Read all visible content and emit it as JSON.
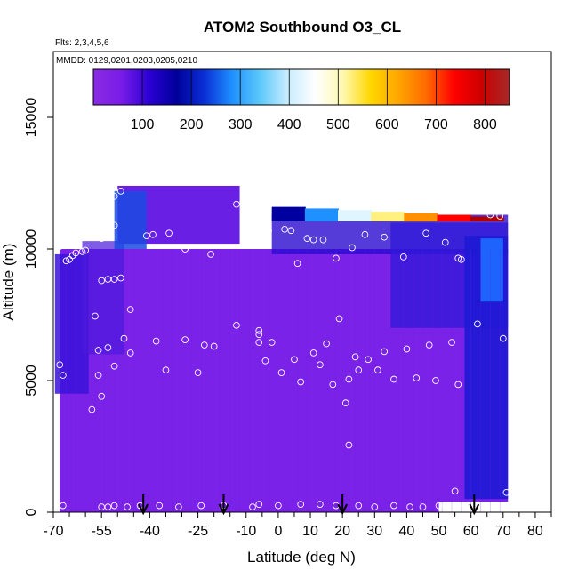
{
  "chart_data": {
    "type": "heatmap",
    "title": "ATOM2 Southbound O3_CL",
    "subtitle_flights": "Flts: 2,3,4,5,6",
    "subtitle_dates": "MMDD: 0129,0201,0203,0205,0210",
    "xlabel": "Latitude (deg N)",
    "ylabel": "Altitude (m)",
    "xlim": [
      -70,
      85
    ],
    "ylim": [
      0,
      17500
    ],
    "x_ticks": [
      "-70",
      "-55",
      "-40",
      "-25",
      "-10",
      "0",
      "10",
      "20",
      "30",
      "40",
      "50",
      "60",
      "70",
      "80"
    ],
    "x_tick_values": [
      -70,
      -55,
      -40,
      -25,
      -10,
      0,
      10,
      20,
      30,
      40,
      50,
      60,
      70,
      80
    ],
    "x_minor_ticks": [
      -65,
      -60,
      -50,
      -45,
      -35,
      -30,
      -20,
      -15,
      -5,
      5,
      15,
      25,
      35,
      45,
      55,
      65,
      75,
      85
    ],
    "y_ticks": [
      "0",
      "5000",
      "10000",
      "15000"
    ],
    "y_tick_values": [
      0,
      5000,
      10000,
      15000
    ],
    "colorbar": {
      "min": 0,
      "max": 850,
      "tick_labels": [
        "100",
        "200",
        "300",
        "400",
        "500",
        "600",
        "700",
        "800"
      ],
      "tick_values": [
        100,
        200,
        300,
        400,
        500,
        600,
        700,
        800
      ],
      "stops": [
        "#8a2be2",
        "#7a1ce8",
        "#2b00d4",
        "#00009a",
        "#0a2fd6",
        "#1e90ff",
        "#5cc8fa",
        "#c8ecff",
        "#ffffff",
        "#fff9b0",
        "#ffd700",
        "#ffa500",
        "#ff6a00",
        "#ff0000",
        "#cc0000",
        "#a52a2a"
      ]
    },
    "field_color_base": "#7b22e8",
    "field_color_dark": "#2a0bd0",
    "field_color_blue": "#1e6bff",
    "top_band_colors": [
      "#0000a0",
      "#1e90ff",
      "#e0f6ff",
      "#fff080",
      "#ff9000",
      "#ff0000",
      "#b00000"
    ],
    "arrows_lat": [
      -42,
      -17,
      20,
      61
    ],
    "observations": [
      {
        "lat": -68,
        "alt": 10100
      },
      {
        "lat": -66,
        "alt": 9550
      },
      {
        "lat": -65,
        "alt": 9600
      },
      {
        "lat": -64,
        "alt": 9750
      },
      {
        "lat": -63,
        "alt": 9850
      },
      {
        "lat": -61,
        "alt": 9900
      },
      {
        "lat": -60,
        "alt": 9950
      },
      {
        "lat": -56,
        "alt": 10600
      },
      {
        "lat": -55,
        "alt": 10400
      },
      {
        "lat": -53,
        "alt": 11800
      },
      {
        "lat": -51,
        "alt": 12000
      },
      {
        "lat": -49,
        "alt": 12200
      },
      {
        "lat": -51,
        "alt": 10900
      },
      {
        "lat": -41,
        "alt": 10500
      },
      {
        "lat": -39,
        "alt": 10550
      },
      {
        "lat": -34,
        "alt": 10600
      },
      {
        "lat": -29,
        "alt": 10000
      },
      {
        "lat": -21,
        "alt": 9800
      },
      {
        "lat": -13,
        "alt": 11700
      },
      {
        "lat": -11,
        "alt": 11800
      },
      {
        "lat": -9,
        "alt": 12000
      },
      {
        "lat": -8,
        "alt": 12000
      },
      {
        "lat": -7,
        "alt": 11900
      },
      {
        "lat": -3,
        "alt": 10700
      },
      {
        "lat": 2,
        "alt": 10750
      },
      {
        "lat": 4,
        "alt": 10700
      },
      {
        "lat": 6,
        "alt": 9450
      },
      {
        "lat": 9,
        "alt": 10400
      },
      {
        "lat": 11,
        "alt": 10350
      },
      {
        "lat": 14,
        "alt": 10350
      },
      {
        "lat": 18,
        "alt": 9650
      },
      {
        "lat": 23,
        "alt": 10050
      },
      {
        "lat": 27,
        "alt": 10550
      },
      {
        "lat": 33,
        "alt": 10450
      },
      {
        "lat": 39,
        "alt": 9700
      },
      {
        "lat": 46,
        "alt": 10600
      },
      {
        "lat": 52,
        "alt": 10250
      },
      {
        "lat": 56,
        "alt": 9650
      },
      {
        "lat": 57,
        "alt": 9600
      },
      {
        "lat": 66,
        "alt": 11300
      },
      {
        "lat": 69,
        "alt": 11250
      },
      {
        "lat": -55,
        "alt": 8800
      },
      {
        "lat": -53,
        "alt": 8850
      },
      {
        "lat": -51,
        "alt": 8850
      },
      {
        "lat": -49,
        "alt": 8900
      },
      {
        "lat": -46,
        "alt": 7700
      },
      {
        "lat": -57,
        "alt": 7450
      },
      {
        "lat": -68,
        "alt": 5600
      },
      {
        "lat": -67,
        "alt": 5200
      },
      {
        "lat": -56,
        "alt": 6150
      },
      {
        "lat": -53,
        "alt": 6250
      },
      {
        "lat": -48,
        "alt": 6600
      },
      {
        "lat": -46,
        "alt": 6050
      },
      {
        "lat": -51,
        "alt": 5550
      },
      {
        "lat": -56,
        "alt": 5200
      },
      {
        "lat": -55,
        "alt": 4400
      },
      {
        "lat": -58,
        "alt": 3900
      },
      {
        "lat": -38,
        "alt": 6500
      },
      {
        "lat": -35,
        "alt": 5400
      },
      {
        "lat": -29,
        "alt": 6550
      },
      {
        "lat": -23,
        "alt": 6350
      },
      {
        "lat": -20,
        "alt": 6300
      },
      {
        "lat": -25,
        "alt": 5300
      },
      {
        "lat": -13,
        "alt": 7100
      },
      {
        "lat": -6,
        "alt": 6900
      },
      {
        "lat": -6,
        "alt": 6750
      },
      {
        "lat": -6,
        "alt": 6450
      },
      {
        "lat": -4,
        "alt": 5750
      },
      {
        "lat": -2,
        "alt": 6450
      },
      {
        "lat": 1,
        "alt": 5300
      },
      {
        "lat": 5,
        "alt": 5800
      },
      {
        "lat": 7,
        "alt": 4950
      },
      {
        "lat": 11,
        "alt": 6050
      },
      {
        "lat": 13,
        "alt": 5600
      },
      {
        "lat": 15,
        "alt": 6400
      },
      {
        "lat": 17,
        "alt": 4850
      },
      {
        "lat": 19,
        "alt": 7350
      },
      {
        "lat": 21,
        "alt": 4150
      },
      {
        "lat": 22,
        "alt": 5050
      },
      {
        "lat": 24,
        "alt": 5900
      },
      {
        "lat": 25,
        "alt": 5400
      },
      {
        "lat": 28,
        "alt": 5800
      },
      {
        "lat": 31,
        "alt": 5400
      },
      {
        "lat": 33,
        "alt": 6100
      },
      {
        "lat": 36,
        "alt": 5050
      },
      {
        "lat": 40,
        "alt": 6200
      },
      {
        "lat": 43,
        "alt": 5100
      },
      {
        "lat": 47,
        "alt": 6350
      },
      {
        "lat": 49,
        "alt": 5000
      },
      {
        "lat": 54,
        "alt": 6450
      },
      {
        "lat": 56,
        "alt": 4850
      },
      {
        "lat": 62,
        "alt": 7150
      },
      {
        "lat": 70,
        "alt": 6600
      },
      {
        "lat": 22,
        "alt": 2550
      },
      {
        "lat": 55,
        "alt": 800
      },
      {
        "lat": 71,
        "alt": 750
      },
      {
        "lat": -67,
        "alt": 250
      },
      {
        "lat": -55,
        "alt": 200
      },
      {
        "lat": -53,
        "alt": 200
      },
      {
        "lat": -51,
        "alt": 250
      },
      {
        "lat": -47,
        "alt": 200
      },
      {
        "lat": -43,
        "alt": 250
      },
      {
        "lat": -37,
        "alt": 250
      },
      {
        "lat": -31,
        "alt": 200
      },
      {
        "lat": -24,
        "alt": 250
      },
      {
        "lat": -17,
        "alt": 250
      },
      {
        "lat": -8,
        "alt": 200
      },
      {
        "lat": -6,
        "alt": 300
      },
      {
        "lat": 0,
        "alt": 250
      },
      {
        "lat": 7,
        "alt": 300
      },
      {
        "lat": 13,
        "alt": 300
      },
      {
        "lat": 18,
        "alt": 250
      },
      {
        "lat": 25,
        "alt": 250
      },
      {
        "lat": 30,
        "alt": 200
      },
      {
        "lat": 36,
        "alt": 250
      },
      {
        "lat": 41,
        "alt": 200
      },
      {
        "lat": 45,
        "alt": 200
      },
      {
        "lat": 50,
        "alt": 250
      },
      {
        "lat": 58,
        "alt": 250
      }
    ]
  }
}
